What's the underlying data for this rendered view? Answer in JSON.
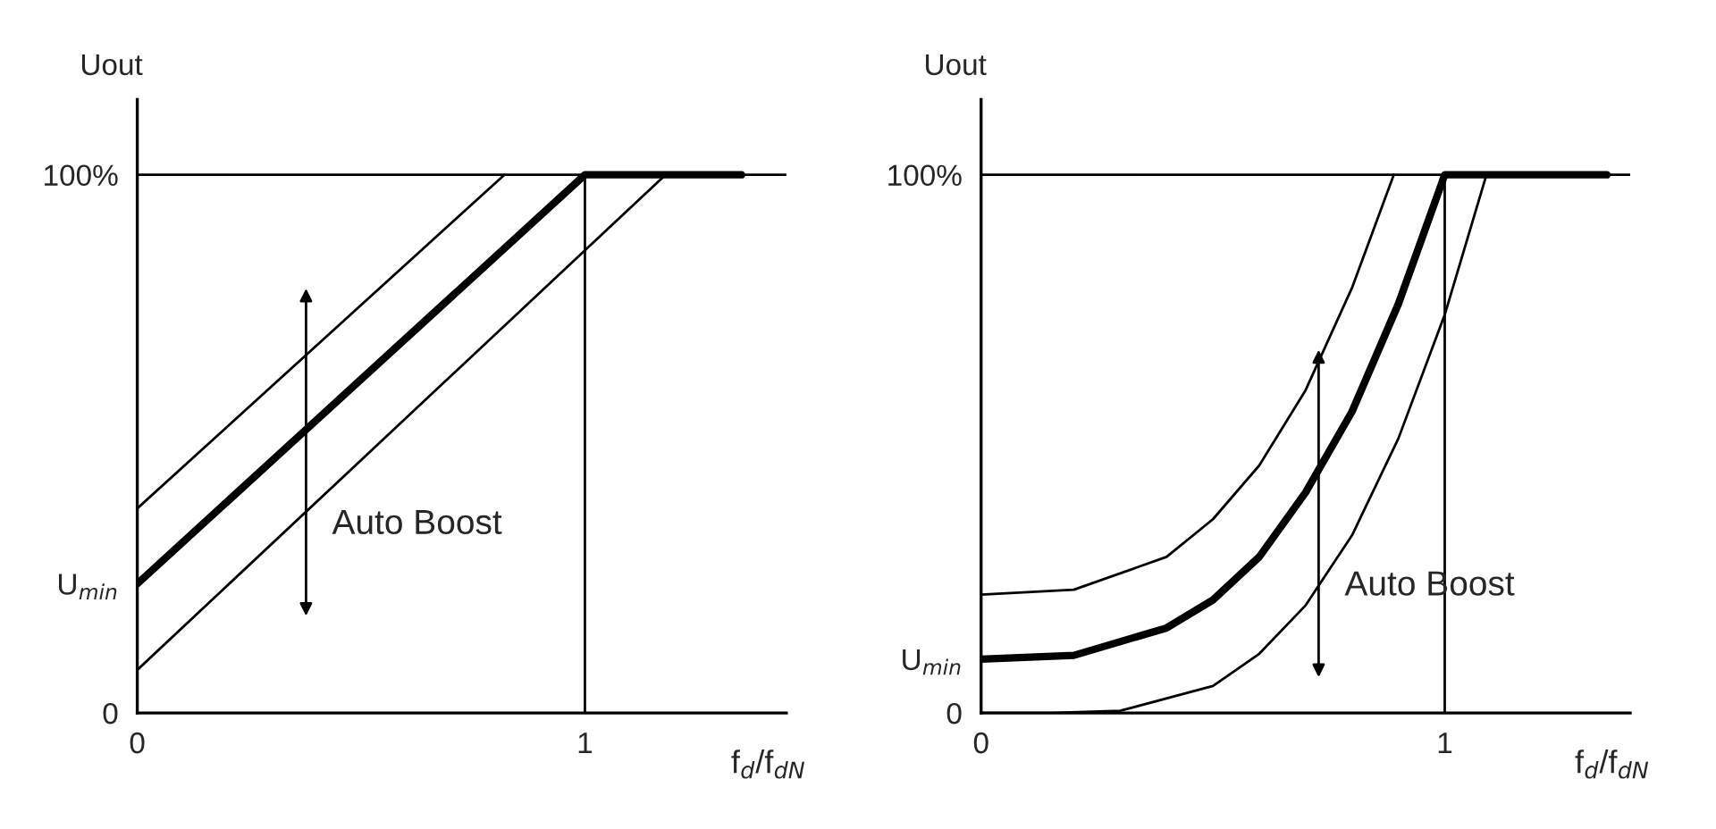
{
  "chart_data": [
    {
      "type": "line",
      "ylabel": "Uout",
      "xlabel": "f$_{d}$/f$_{dN}$",
      "xlim": [
        0,
        1.45
      ],
      "ylim": [
        0,
        114
      ],
      "xticks": [
        0,
        1
      ],
      "yticks": [
        0,
        {
          "value": 24,
          "label": "U$_{min}$"
        },
        {
          "value": 100,
          "label": "100%"
        }
      ],
      "grid": false,
      "legend": false,
      "marker": "none",
      "line_style": "solid",
      "series": [
        {
          "color": "#000000",
          "x": [
            0,
            1,
            1.35
          ],
          "values": [
            24,
            100,
            100
          ]
        },
        {
          "color": "#000000",
          "x": [
            0,
            0.82
          ],
          "values": [
            38,
            100
          ]
        },
        {
          "color": "#000000",
          "x": [
            0,
            1.18
          ],
          "values": [
            8,
            100
          ]
        }
      ],
      "ref_lines": [
        {
          "axis": "y",
          "value": 100,
          "color": "#000000"
        },
        {
          "axis": "x",
          "value": 1,
          "color": "#000000"
        }
      ],
      "annotations": [
        "Auto Boost"
      ]
    },
    {
      "type": "line",
      "ylabel": "Uout",
      "xlabel": "f$_{d}$/f$_{dN}$",
      "xlim": [
        0,
        1.4
      ],
      "ylim": [
        0,
        114
      ],
      "xticks": [
        0,
        1
      ],
      "yticks": [
        0,
        {
          "value": 10,
          "label": "U$_{min}$"
        },
        {
          "value": 100,
          "label": "100%"
        }
      ],
      "grid": false,
      "legend": false,
      "marker": "none",
      "line_style": "solid",
      "series": [
        {
          "color": "#000000",
          "x": [
            0,
            0.2,
            0.4,
            0.5,
            0.6,
            0.7,
            0.8,
            0.9,
            1,
            1.35
          ],
          "values": [
            10,
            10.7,
            15.8,
            21,
            29,
            41,
            56,
            76,
            100,
            100
          ]
        },
        {
          "color": "#000000",
          "x": [
            0,
            0.2,
            0.4,
            0.5,
            0.6,
            0.7,
            0.8,
            0.89
          ],
          "values": [
            22,
            22.9,
            29,
            36,
            46,
            60,
            79,
            100
          ]
        },
        {
          "color": "#000000",
          "x": [
            0,
            0.15,
            0.3,
            0.5,
            0.6,
            0.7,
            0.8,
            0.9,
            1,
            1.09
          ],
          "values": [
            0,
            0,
            0.4,
            5,
            11,
            20,
            33,
            51,
            74,
            100
          ]
        }
      ],
      "ref_lines": [
        {
          "axis": "y",
          "value": 100,
          "color": "#000000"
        },
        {
          "axis": "x",
          "value": 1,
          "color": "#000000"
        }
      ],
      "annotations": [
        "Auto Boost"
      ]
    }
  ]
}
